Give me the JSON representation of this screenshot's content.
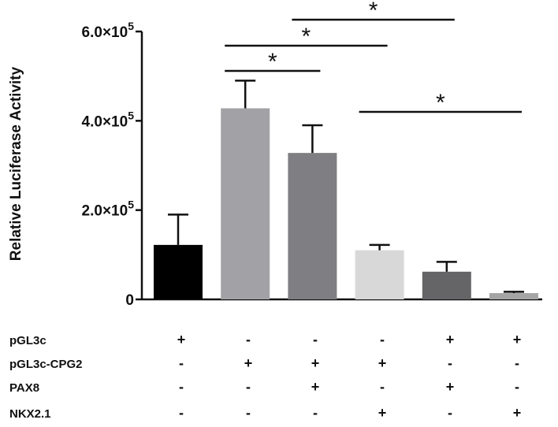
{
  "chart_data": {
    "type": "bar",
    "title": "",
    "xlabel": "",
    "ylabel": "Relative Luciferase Activity",
    "ylim": [
      0,
      600000
    ],
    "yticks": [
      {
        "value": 0,
        "mantissa": "0",
        "exponent": ""
      },
      {
        "value": 200000,
        "mantissa": "2.0×10",
        "exponent": "5"
      },
      {
        "value": 400000,
        "mantissa": "4.0×10",
        "exponent": "5"
      },
      {
        "value": 600000,
        "mantissa": "6.0×10",
        "exponent": "5"
      }
    ],
    "grid": false,
    "bars": [
      {
        "value": 122000,
        "error": 68000,
        "color": "#000000"
      },
      {
        "value": 428000,
        "error": 62000,
        "color": "#a2a2a6"
      },
      {
        "value": 328000,
        "error": 62000,
        "color": "#7f7f83"
      },
      {
        "value": 110000,
        "error": 12000,
        "color": "#d8d8d8"
      },
      {
        "value": 62000,
        "error": 22000,
        "color": "#656567"
      },
      {
        "value": 14000,
        "error": 3000,
        "color": "#a5a5a5"
      }
    ],
    "significance": [
      {
        "from": 1,
        "to": 2,
        "label": "*",
        "level": 1
      },
      {
        "from": 1,
        "to": 3,
        "label": "*",
        "level": 2
      },
      {
        "from": 2,
        "to": 4,
        "label": "*",
        "level": 3
      },
      {
        "from": 3,
        "to": 5,
        "label": "*",
        "level": 0
      }
    ],
    "conditions": [
      {
        "name": "pGL3c",
        "signs": [
          "+",
          "-",
          "-",
          "-",
          "+",
          "+"
        ]
      },
      {
        "name": "pGL3c-CPG2",
        "signs": [
          "-",
          "+",
          "+",
          "+",
          "-",
          "-"
        ]
      },
      {
        "name": "PAX8",
        "signs": [
          "-",
          "-",
          "+",
          "-",
          "+",
          "-"
        ]
      },
      {
        "name": "NKX2.1",
        "signs": [
          "-",
          "-",
          "-",
          "+",
          "-",
          "+"
        ]
      }
    ]
  }
}
